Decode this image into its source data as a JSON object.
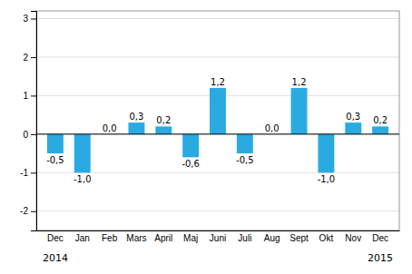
{
  "chart_data": {
    "type": "bar",
    "categories": [
      "Dec",
      "Jan",
      "Feb",
      "Mars",
      "April",
      "Maj",
      "Juni",
      "Juli",
      "Aug",
      "Sept",
      "Okt",
      "Nov",
      "Dec"
    ],
    "values": [
      -0.5,
      -1.0,
      0.0,
      0.3,
      0.2,
      -0.6,
      1.2,
      -0.5,
      0.0,
      1.2,
      -1.0,
      0.3,
      0.2
    ],
    "value_labels": [
      "-0,5",
      "-1,0",
      "0,0",
      "0,3",
      "0,2",
      "-0,6",
      "1,2",
      "-0,5",
      "0,0",
      "1,2",
      "-1,0",
      "0,3",
      "0,2"
    ],
    "color": "#29abe2",
    "ylim": [
      -2.5,
      3.2
    ],
    "yticks": [
      -2,
      -1,
      0,
      1,
      2,
      3
    ],
    "grid": true,
    "data_labels": true,
    "annotations": [
      "2014",
      "2015"
    ]
  }
}
